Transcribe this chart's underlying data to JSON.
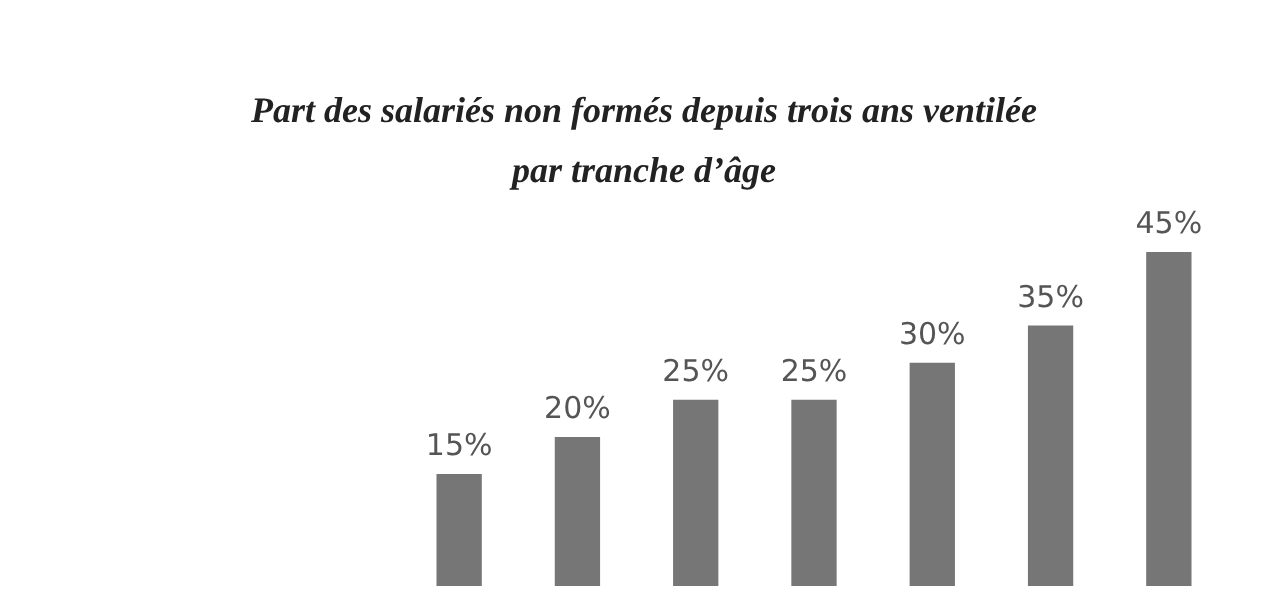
{
  "chart_data": {
    "type": "bar",
    "title": "Part des salariés non formés depuis trois ans ventilée par tranche d’âge",
    "categories": [
      null,
      null,
      null,
      null,
      null,
      null,
      null
    ],
    "values": [
      15,
      20,
      25,
      25,
      30,
      35,
      45
    ],
    "color": "#767676",
    "value_labels": [
      "15%",
      "20%",
      "25%",
      "25%",
      "30%",
      "35%",
      "45%"
    ],
    "legend": false,
    "grid": false
  }
}
